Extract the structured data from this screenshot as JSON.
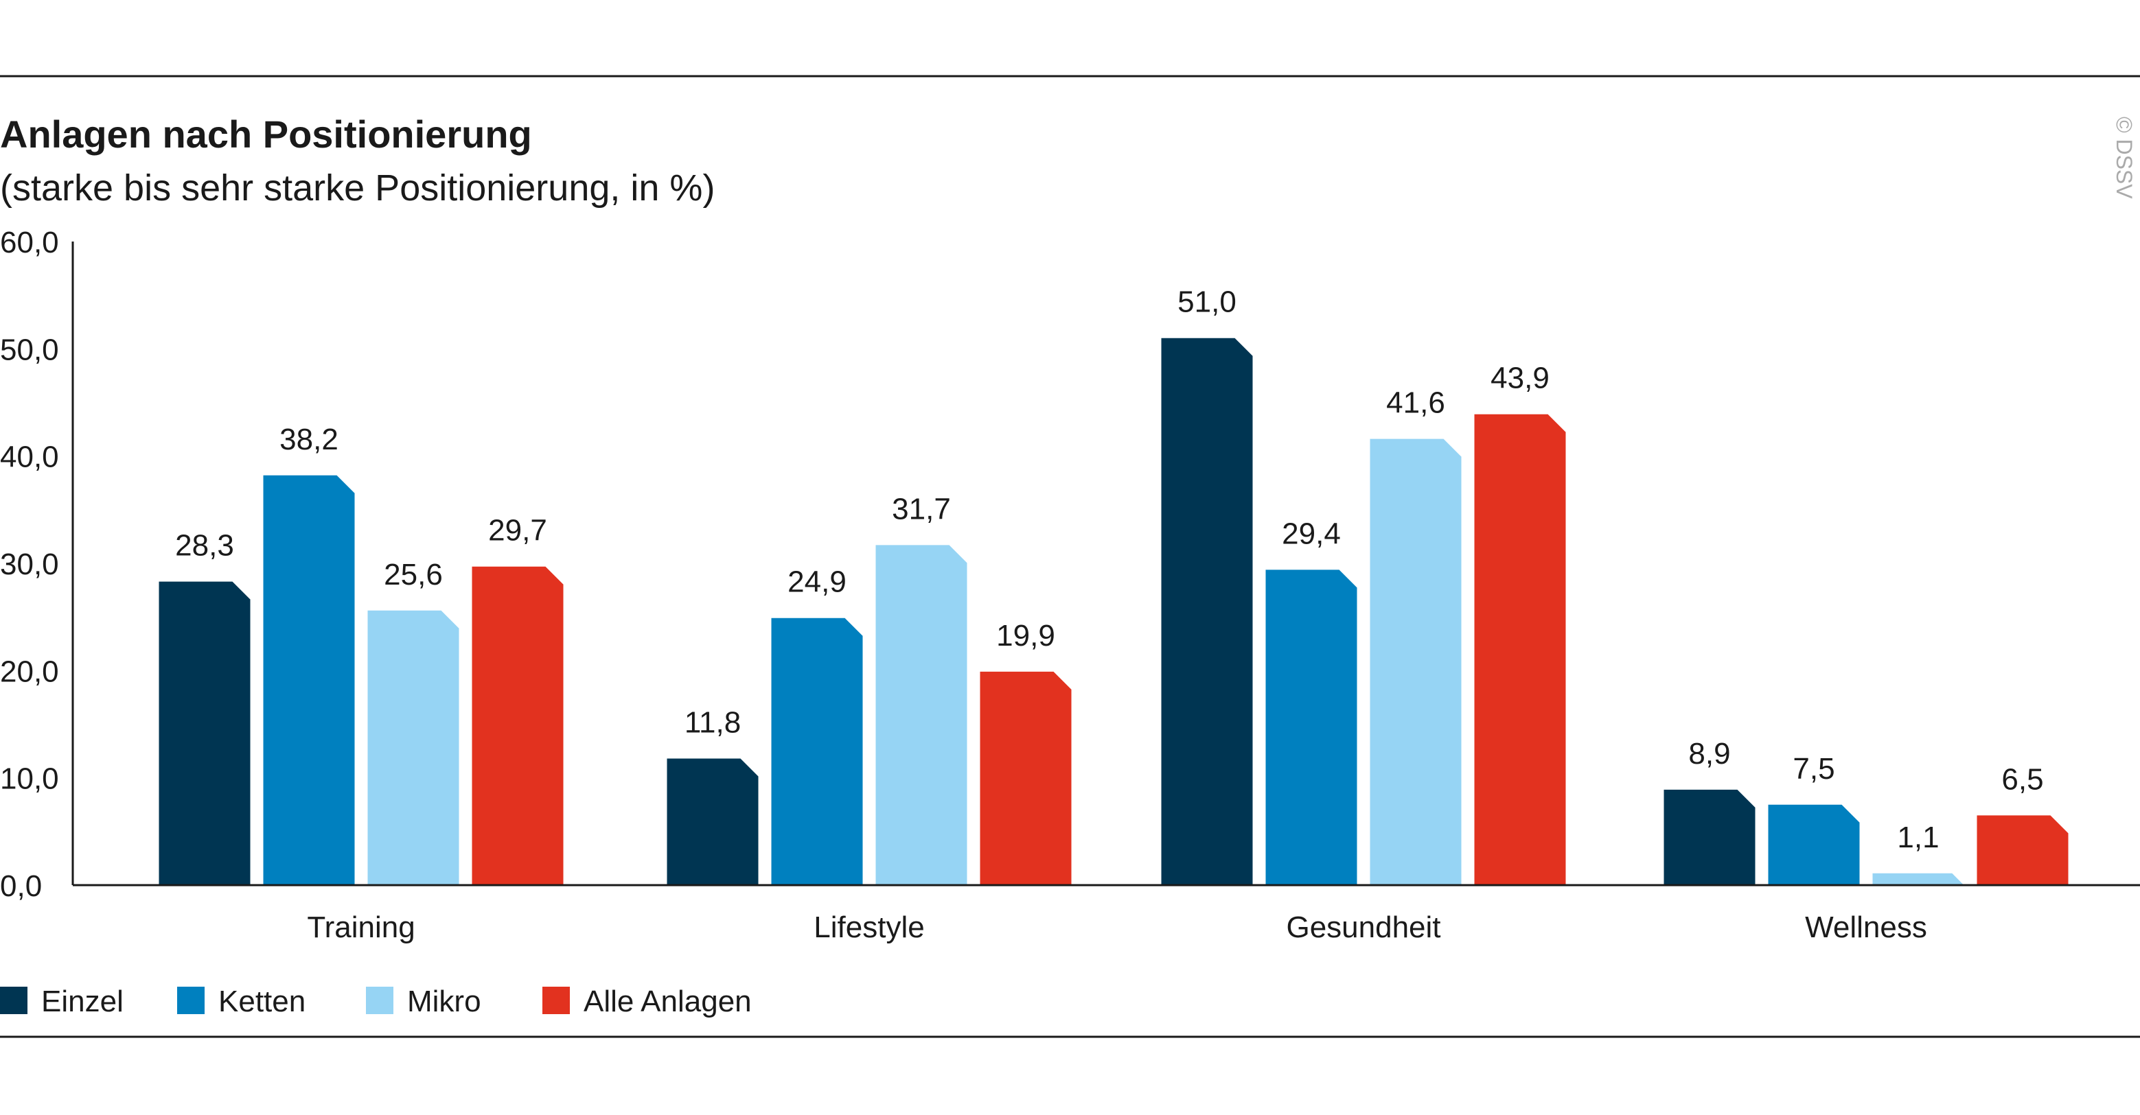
{
  "colors": {
    "einzel": "#003552",
    "ketten": "#0080bf",
    "mikro": "#96d4f4",
    "alle": "#e2321f",
    "rule": "#1a1a1a",
    "copyright": "#aaaaaa"
  },
  "copyright": "© DSSV",
  "chart_data": {
    "type": "bar",
    "title": "Anlagen nach Positionierung",
    "subtitle": "(starke bis sehr starke Positionierung, in %)",
    "categories": [
      "Training",
      "Lifestyle",
      "Gesundheit",
      "Wellness"
    ],
    "series": [
      {
        "name": "Einzel",
        "values": [
          28.3,
          11.8,
          51.0,
          8.9
        ],
        "labels": [
          "28,3",
          "11,8",
          "51,0",
          "8,9"
        ]
      },
      {
        "name": "Ketten",
        "values": [
          38.2,
          24.9,
          29.4,
          7.5
        ],
        "labels": [
          "38,2",
          "24,9",
          "29,4",
          "7,5"
        ]
      },
      {
        "name": "Mikro",
        "values": [
          25.6,
          31.7,
          41.6,
          1.1
        ],
        "labels": [
          "25,6",
          "31,7",
          "41,6",
          "1,1"
        ]
      },
      {
        "name": "Alle Anlagen",
        "values": [
          29.7,
          19.9,
          43.9,
          6.5
        ],
        "labels": [
          "29,7",
          "19,9",
          "43,9",
          "6,5"
        ]
      }
    ],
    "yticks": [
      0,
      10,
      20,
      30,
      40,
      50,
      60
    ],
    "ytick_labels": [
      "0,0",
      "10,0",
      "20,0",
      "30,0",
      "40,0",
      "50,0",
      "60,0"
    ],
    "ylim": [
      0,
      60
    ],
    "grid": false,
    "legend_position": "bottom-left"
  }
}
